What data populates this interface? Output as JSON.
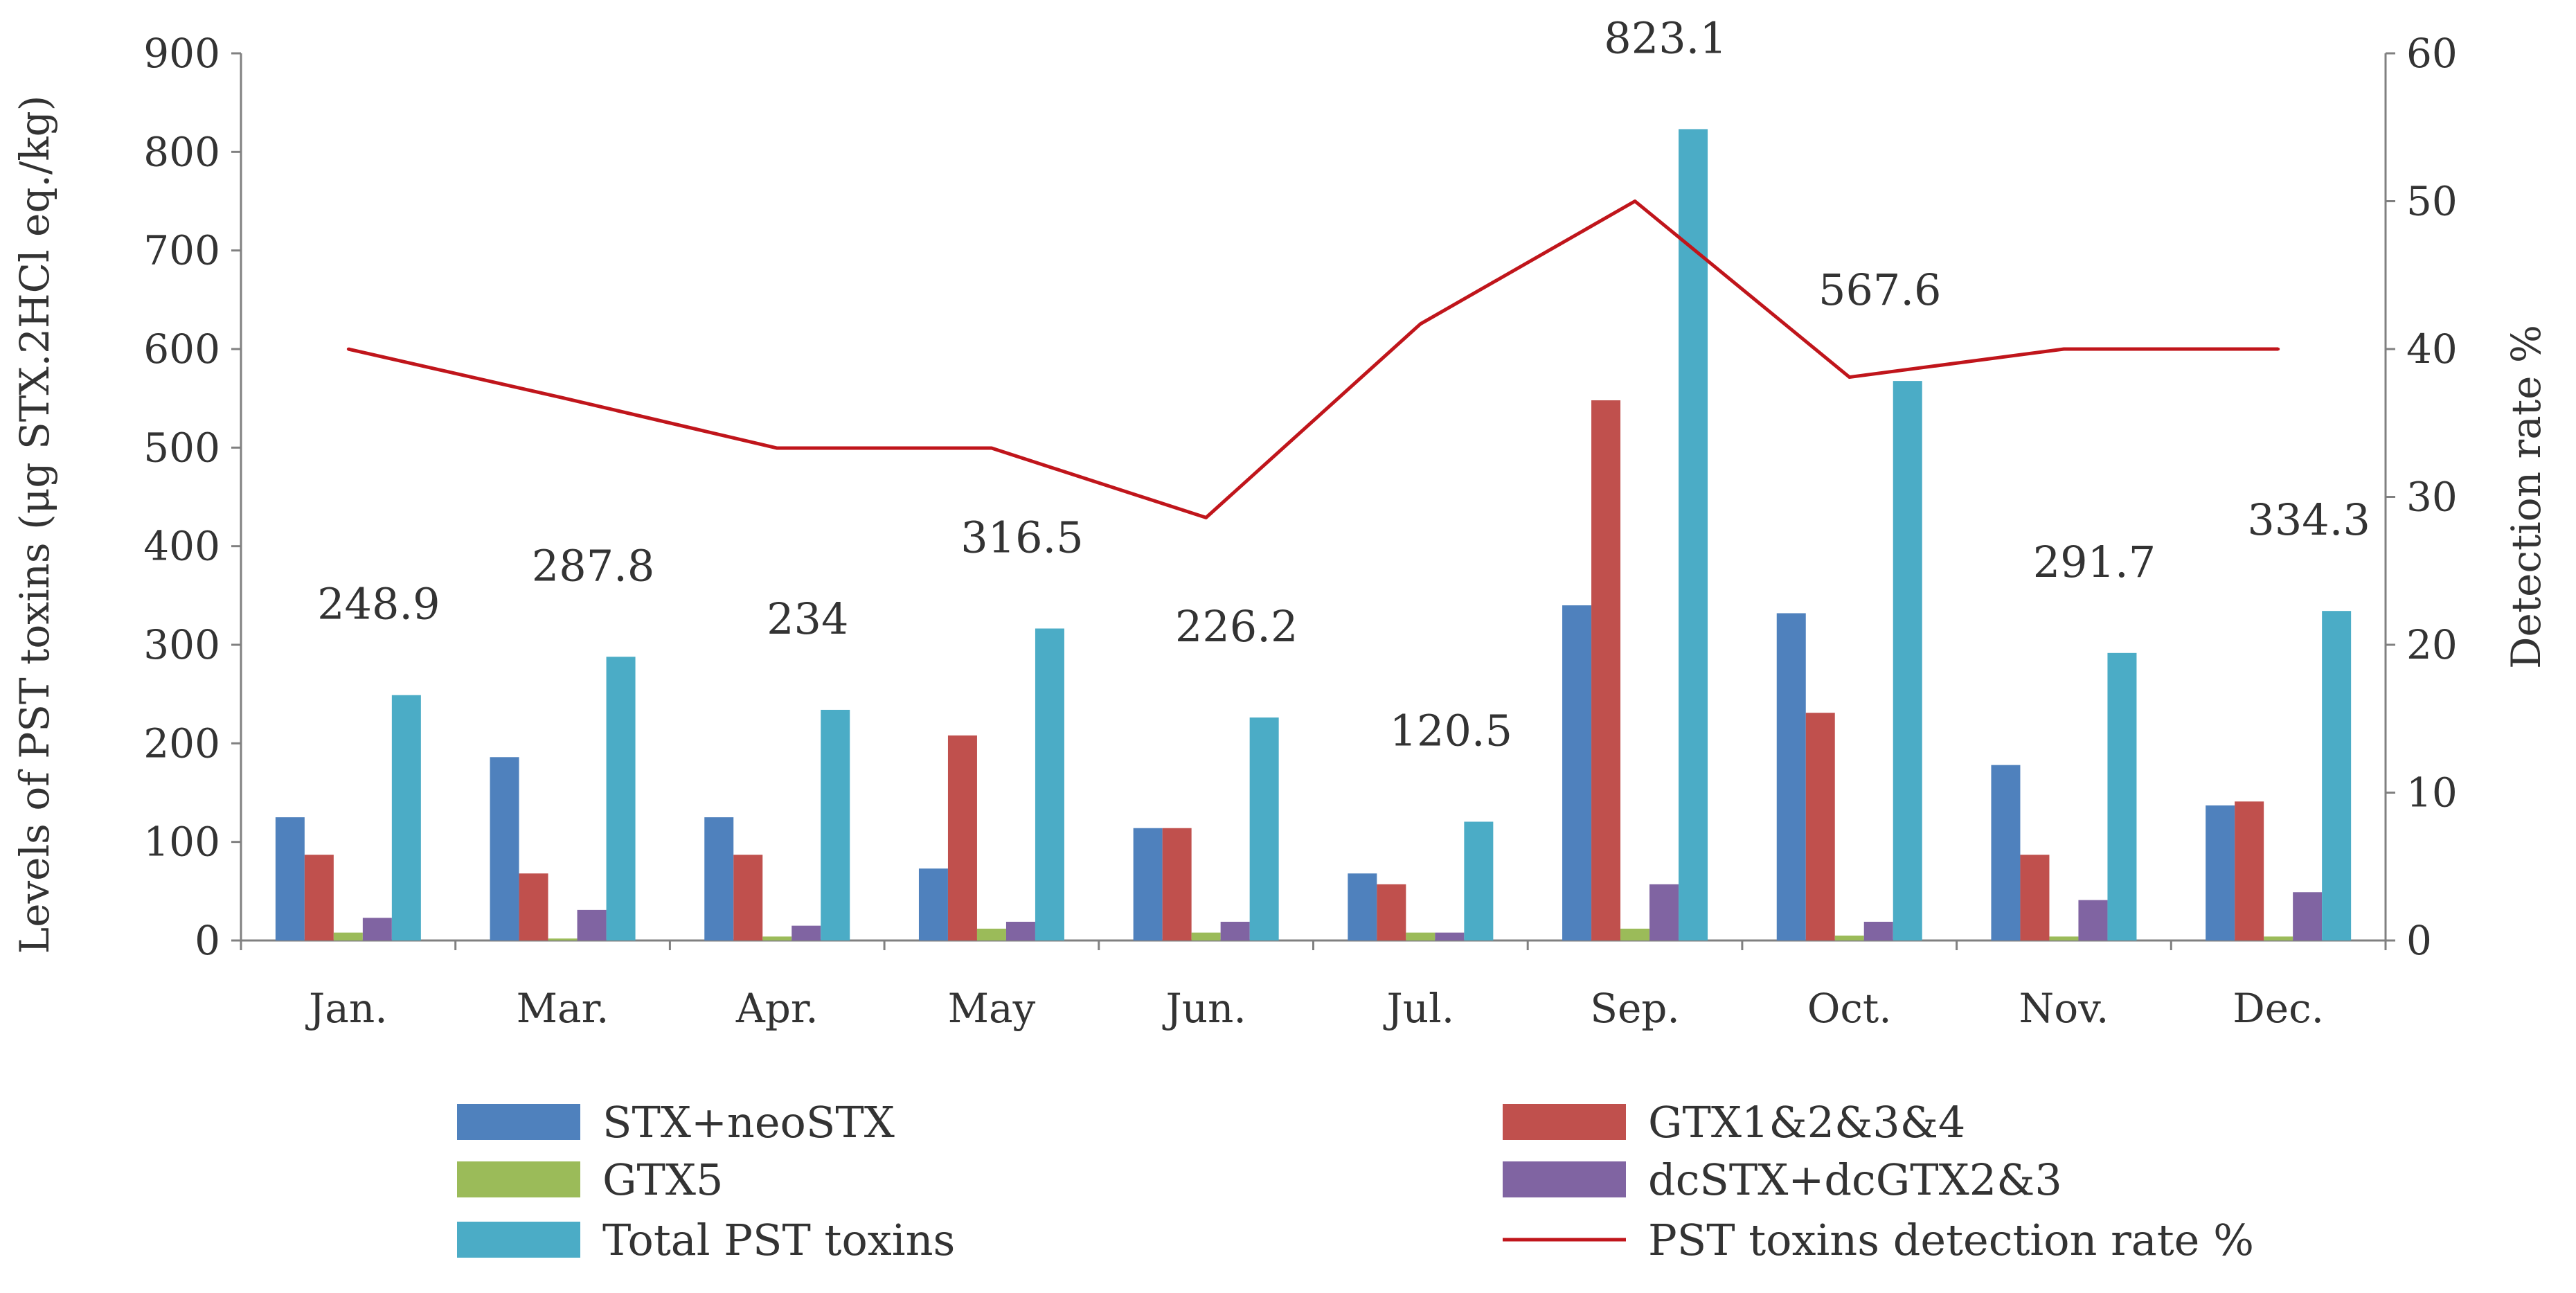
{
  "chart_data": {
    "type": "bar",
    "title": "",
    "categories": [
      "Jan.",
      "Mar.",
      "Apr.",
      "May",
      "Jun.",
      "Jul.",
      "Sep.",
      "Oct.",
      "Nov.",
      "Dec."
    ],
    "series": [
      {
        "name": "STX+neoSTX",
        "color": "#4f81bd",
        "axis": "left",
        "values": [
          125,
          186,
          125,
          73,
          114,
          68,
          340,
          332,
          178,
          137
        ]
      },
      {
        "name": "GTX1&2&3&4",
        "color": "#c0504d",
        "axis": "left",
        "values": [
          87,
          68,
          87,
          208,
          114,
          57,
          548,
          231,
          87,
          141
        ]
      },
      {
        "name": "GTX5",
        "color": "#9bbb59",
        "axis": "left",
        "values": [
          8,
          2,
          4,
          12,
          8,
          8,
          12,
          5,
          4,
          4
        ]
      },
      {
        "name": "dcSTX+dcGTX2&3",
        "color": "#8064a2",
        "axis": "left",
        "values": [
          23,
          31,
          15,
          19,
          19,
          8,
          57,
          19,
          41,
          49
        ]
      },
      {
        "name": "Total PST toxins",
        "color": "#4bacc6",
        "axis": "left",
        "values": [
          248.9,
          287.8,
          234,
          316.5,
          226.2,
          120.5,
          823.1,
          567.6,
          291.7,
          334.3
        ]
      }
    ],
    "line_series": {
      "name": "PST toxins detection rate %",
      "color": "#c0151b",
      "axis": "right",
      "values": [
        40,
        36.7,
        33.3,
        33.3,
        28.6,
        41.7,
        50,
        38.1,
        40,
        40
      ]
    },
    "data_labels": [
      "248.9",
      "287.8",
      "234",
      "316.5",
      "226.2",
      "120.5",
      "823.1",
      "567.6",
      "291.7",
      "334.3"
    ],
    "ylabel": "Levels of PST toxins (μg STX.2HCl eq./kg)",
    "y2label": "Detection rate %",
    "xlabel": "",
    "ylim": [
      0,
      900
    ],
    "y2lim": [
      0,
      60
    ],
    "yticks": [
      "0",
      "100",
      "200",
      "300",
      "400",
      "500",
      "600",
      "700",
      "800",
      "900"
    ],
    "y2ticks": [
      "0",
      "10",
      "20",
      "30",
      "40",
      "50",
      "60"
    ],
    "grid": false,
    "legend_position": "bottom"
  }
}
